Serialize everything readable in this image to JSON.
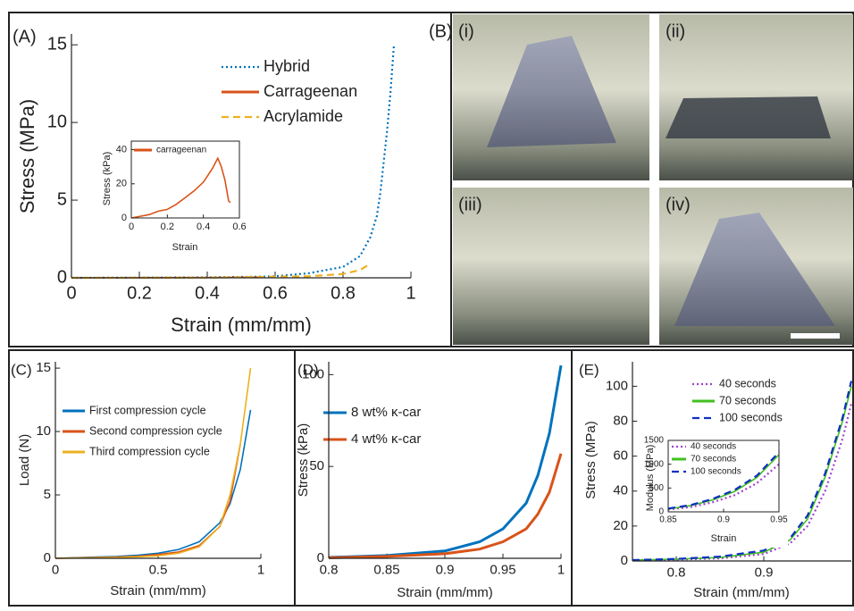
{
  "chart_data": [
    {
      "type": "line",
      "panel_label": "(A)",
      "xlabel": "Strain (mm/mm)",
      "ylabel": "Stress (MPa)",
      "xlim": [
        0,
        1
      ],
      "xticks": [
        0,
        0.2,
        0.4,
        0.6,
        0.8,
        1
      ],
      "ylim": [
        0,
        15.7
      ],
      "yticks": [
        0,
        5,
        10,
        15
      ],
      "series": [
        {
          "name": "Hybrid",
          "color": "#0072bd",
          "linestyle": "dotted",
          "x": [
            0,
            0.2,
            0.4,
            0.55,
            0.6,
            0.7,
            0.8,
            0.85,
            0.88,
            0.9,
            0.91,
            0.93,
            0.94,
            0.95
          ],
          "values": [
            0,
            0.01,
            0.03,
            0.07,
            0.1,
            0.3,
            0.7,
            1.4,
            2.6,
            4,
            5.5,
            9.5,
            12,
            15
          ]
        },
        {
          "name": "Carrageenan",
          "color": "#d95319",
          "linestyle": "solid",
          "x": [
            0,
            0.2,
            0.4,
            0.55
          ],
          "values": [
            0,
            0.01,
            0.02,
            0.04
          ]
        },
        {
          "name": "Acrylamide",
          "color": "#edb120",
          "linestyle": "dashed",
          "x": [
            0,
            0.4,
            0.7,
            0.8,
            0.85,
            0.88
          ],
          "values": [
            0,
            0.01,
            0.1,
            0.25,
            0.5,
            0.9
          ]
        }
      ],
      "inset": {
        "type": "line",
        "xlabel": "Strain",
        "ylabel": "Stress (kPa)",
        "xlim": [
          0,
          0.6
        ],
        "xticks": [
          0,
          0.2,
          0.4,
          0.6
        ],
        "ylim": [
          0,
          45
        ],
        "yticks": [
          0,
          20,
          40
        ],
        "series": [
          {
            "name": "carrageenan",
            "color": "#d95319",
            "linestyle": "solid",
            "x": [
              0,
              0.05,
              0.1,
              0.15,
              0.2,
              0.25,
              0.3,
              0.35,
              0.4,
              0.45,
              0.48,
              0.5,
              0.52,
              0.54,
              0.55
            ],
            "values": [
              0,
              1,
              2,
              4,
              5,
              8,
              12,
              16,
              21,
              29,
              35,
              30,
              22,
              10,
              9
            ]
          }
        ]
      }
    },
    {
      "type": "line",
      "panel_label": "(C)",
      "xlabel": "Strain (mm/mm)",
      "ylabel": "Load (N)",
      "xlim": [
        0,
        1
      ],
      "xticks": [
        0,
        0.5,
        1
      ],
      "ylim": [
        0,
        15.5
      ],
      "yticks": [
        0,
        5,
        10,
        15
      ],
      "x": [
        0,
        0.1,
        0.2,
        0.3,
        0.4,
        0.5,
        0.6,
        0.7,
        0.8,
        0.85,
        0.9,
        0.95
      ],
      "series": [
        {
          "name": "First compression cycle",
          "color": "#0072bd",
          "linestyle": "solid",
          "values": [
            0,
            0.05,
            0.1,
            0.15,
            0.25,
            0.4,
            0.7,
            1.3,
            2.8,
            4.3,
            7,
            11.7
          ]
        },
        {
          "name": "Second compression cycle",
          "color": "#d95319",
          "linestyle": "solid",
          "values": [
            0,
            0.03,
            0.06,
            0.1,
            0.16,
            0.3,
            0.5,
            1,
            2.5,
            4.5,
            9,
            null
          ]
        },
        {
          "name": "Third compression cycle",
          "color": "#edb120",
          "linestyle": "solid",
          "values": [
            0,
            0.02,
            0.04,
            0.07,
            0.12,
            0.2,
            0.4,
            0.9,
            2.5,
            5,
            9,
            15
          ]
        }
      ]
    },
    {
      "type": "line",
      "panel_label": "(D)",
      "xlabel": "Strain (mm/mm)",
      "ylabel": "Stress (kPa)",
      "xlim": [
        0.8,
        1
      ],
      "xticks": [
        0.8,
        0.85,
        0.9,
        0.95,
        1
      ],
      "ylim": [
        0,
        107
      ],
      "yticks": [
        0,
        50,
        100
      ],
      "x": [
        0.8,
        0.85,
        0.9,
        0.93,
        0.95,
        0.97,
        0.98,
        0.99,
        1
      ],
      "series": [
        {
          "name": "8 wt% κ-car",
          "color": "#0072bd",
          "linestyle": "solid",
          "values": [
            0.5,
            1.5,
            4,
            9,
            16,
            30,
            45,
            68,
            105
          ]
        },
        {
          "name": "4 wt% κ-car",
          "color": "#d95319",
          "linestyle": "solid",
          "values": [
            0.3,
            1,
            2.5,
            5,
            9,
            16,
            24,
            36,
            57
          ]
        }
      ]
    },
    {
      "type": "line",
      "panel_label": "(E)",
      "xlabel": "Strain (mm/mm)",
      "ylabel": "Stress (MPa)",
      "xlim": [
        0.75,
        1
      ],
      "xticks": [
        0.8,
        0.9
      ],
      "ylim": [
        0,
        114
      ],
      "yticks": [
        0,
        20,
        40,
        60,
        80,
        100
      ],
      "x": [
        0.75,
        0.8,
        0.85,
        0.9,
        0.93,
        0.95,
        0.97,
        0.99,
        1
      ],
      "series": [
        {
          "name": "40 seconds",
          "color": "#a040d0",
          "linestyle": "dotted",
          "values": [
            0.5,
            0.8,
            1.5,
            4,
            10,
            20,
            40,
            70,
            90
          ]
        },
        {
          "name": "70 seconds",
          "color": "#40c020",
          "linestyle": "solid",
          "values": [
            0.5,
            1,
            2,
            5,
            12,
            24,
            48,
            80,
            100
          ]
        },
        {
          "name": "100 seconds",
          "color": "#1030c0",
          "linestyle": "dashed",
          "values": [
            0.5,
            1.2,
            2.5,
            6,
            13,
            26,
            50,
            82,
            103
          ]
        }
      ],
      "inset": {
        "type": "line",
        "xlabel": "Strain",
        "ylabel": "Modulus (MPa)",
        "xlim": [
          0.85,
          0.95
        ],
        "xticks": [
          0.85,
          0.9,
          0.95
        ],
        "ylim": [
          0,
          1500
        ],
        "yticks": [
          0,
          500,
          1000,
          1500
        ],
        "x": [
          0.85,
          0.87,
          0.89,
          0.91,
          0.93,
          0.95
        ],
        "series": [
          {
            "name": "40 seconds",
            "color": "#a040d0",
            "linestyle": "dotted",
            "values": [
              50,
              100,
              200,
              350,
              600,
              1000
            ]
          },
          {
            "name": "70 seconds",
            "color": "#40c020",
            "linestyle": "solid",
            "values": [
              60,
              130,
              250,
              430,
              720,
              1200
            ]
          },
          {
            "name": "100 seconds",
            "color": "#1030c0",
            "linestyle": "dashed",
            "values": [
              70,
              140,
              270,
              460,
              760,
              1250
            ]
          }
        ]
      }
    }
  ],
  "photos": {
    "panel_label": "(B)",
    "labels": [
      "(i)",
      "(ii)",
      "(iii)",
      "(iv)"
    ]
  }
}
